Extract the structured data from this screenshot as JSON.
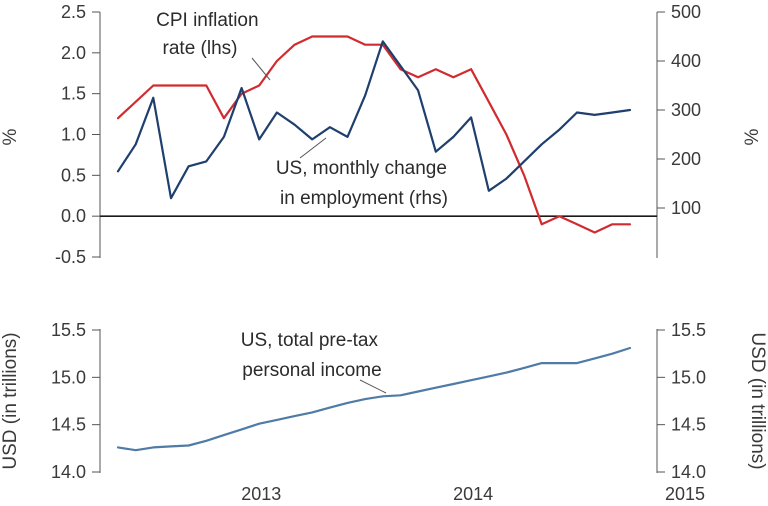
{
  "colors": {
    "cpi": "#d12b2f",
    "employment": "#1f3f6e",
    "income": "#4f7ba6",
    "zero_line": "#1a1a1a",
    "axis": "#555555"
  },
  "chart_data": [
    {
      "type": "line",
      "title": "",
      "x_tick_labels": [
        "2013",
        "2014",
        "2015"
      ],
      "left_axis": {
        "label": "%",
        "ylim": [
          -0.5,
          2.5
        ],
        "ticks": [
          "2.5",
          "2.0",
          "1.5",
          "1.0",
          "0.5",
          "0.0",
          "-0.5"
        ],
        "tick_values": [
          2.5,
          2.0,
          1.5,
          1.0,
          0.5,
          0.0,
          -0.5
        ]
      },
      "right_axis": {
        "label": "%",
        "ylim": [
          0,
          500
        ],
        "ticks": [
          "500",
          "400",
          "300",
          "200",
          "100"
        ],
        "tick_values": [
          500,
          400,
          300,
          200,
          100
        ]
      },
      "x": [
        "2012-10",
        "2012-11",
        "2012-12",
        "2013-01",
        "2013-02",
        "2013-03",
        "2013-04",
        "2013-05",
        "2013-06",
        "2013-07",
        "2013-08",
        "2013-09",
        "2013-10",
        "2013-11",
        "2013-12",
        "2014-01",
        "2014-02",
        "2014-03",
        "2014-04",
        "2014-05",
        "2014-06",
        "2014-07",
        "2014-08",
        "2014-09",
        "2014-10",
        "2014-11",
        "2014-12",
        "2015-01",
        "2015-02",
        "2015-03"
      ],
      "series": [
        {
          "name": "CPI inflation rate (lhs)",
          "axis": "left",
          "color_key": "cpi",
          "x": [
            "2012-10",
            "2012-12",
            "2013-01",
            "2013-02",
            "2013-03",
            "2013-04",
            "2013-05",
            "2013-06",
            "2013-07",
            "2013-08",
            "2013-09",
            "2013-10",
            "2013-11",
            "2013-12",
            "2014-01",
            "2014-02",
            "2014-03",
            "2014-04",
            "2014-05",
            "2014-06",
            "2014-07",
            "2014-08",
            "2014-09",
            "2014-10",
            "2014-11",
            "2014-12",
            "2015-01",
            "2015-02",
            "2015-03"
          ],
          "values": [
            1.2,
            1.6,
            1.6,
            1.6,
            1.6,
            1.2,
            1.5,
            1.6,
            1.9,
            2.1,
            2.2,
            2.2,
            2.2,
            2.1,
            2.1,
            1.8,
            1.7,
            1.8,
            1.7,
            1.8,
            1.4,
            1.0,
            0.5,
            -0.1,
            0.0,
            -0.1,
            -0.2,
            -0.1,
            -0.1
          ]
        },
        {
          "name": "US, monthly change in employment (rhs)",
          "axis": "right",
          "color_key": "employment",
          "x": [
            "2012-10",
            "2012-11",
            "2012-12",
            "2013-01",
            "2013-02",
            "2013-03",
            "2013-04",
            "2013-05",
            "2013-06",
            "2013-07",
            "2013-08",
            "2013-09",
            "2013-10",
            "2013-11",
            "2013-12",
            "2014-01",
            "2014-02",
            "2014-03",
            "2014-04",
            "2014-05",
            "2014-06",
            "2014-07",
            "2014-08",
            "2014-09",
            "2014-10",
            "2014-11",
            "2014-12",
            "2015-01",
            "2015-02",
            "2015-03"
          ],
          "values": [
            175,
            230,
            325,
            120,
            185,
            195,
            245,
            345,
            240,
            295,
            270,
            240,
            265,
            245,
            330,
            440,
            390,
            340,
            215,
            245,
            285,
            135,
            160,
            195,
            230,
            260,
            295,
            290,
            295,
            300
          ]
        }
      ],
      "annotations": [
        {
          "text_lines": [
            "CPI inflation",
            "rate (lhs)"
          ]
        },
        {
          "text_lines": [
            "US, monthly change",
            "in employment (rhs)"
          ]
        }
      ]
    },
    {
      "type": "line",
      "title": "",
      "x_tick_labels": [
        "2013",
        "2014",
        "2015"
      ],
      "left_axis": {
        "label": "USD (in trillions)",
        "ylim": [
          14.0,
          15.5
        ],
        "ticks": [
          "15.5",
          "15.0",
          "14.5",
          "14.0"
        ],
        "tick_values": [
          15.5,
          15.0,
          14.5,
          14.0
        ]
      },
      "right_axis": {
        "label": "USD (in trillions)",
        "ylim": [
          14.0,
          15.5
        ],
        "ticks": [
          "15.5",
          "15.0",
          "14.5",
          "14.0"
        ],
        "tick_values": [
          15.5,
          15.0,
          14.5,
          14.0
        ]
      },
      "series": [
        {
          "name": "US, total pre-tax personal income",
          "axis": "left",
          "color_key": "income",
          "x": [
            "2012-10",
            "2012-11",
            "2012-12",
            "2013-01",
            "2013-02",
            "2013-03",
            "2013-04",
            "2013-05",
            "2013-06",
            "2013-07",
            "2013-08",
            "2013-09",
            "2013-10",
            "2013-11",
            "2013-12",
            "2014-01",
            "2014-02",
            "2014-03",
            "2014-04",
            "2014-05",
            "2014-06",
            "2014-07",
            "2014-08",
            "2014-09",
            "2014-10",
            "2014-11",
            "2014-12",
            "2015-01",
            "2015-02",
            "2015-03"
          ],
          "values": [
            14.26,
            14.23,
            14.26,
            14.27,
            14.28,
            14.33,
            14.39,
            14.45,
            14.51,
            14.55,
            14.59,
            14.63,
            14.68,
            14.73,
            14.77,
            14.8,
            14.81,
            14.85,
            14.89,
            14.93,
            14.97,
            15.01,
            15.05,
            15.1,
            15.15,
            15.15,
            15.15,
            15.2,
            15.25,
            15.31
          ]
        }
      ],
      "annotations": [
        {
          "text_lines": [
            "US, total pre-tax",
            "personal income"
          ]
        }
      ]
    }
  ]
}
